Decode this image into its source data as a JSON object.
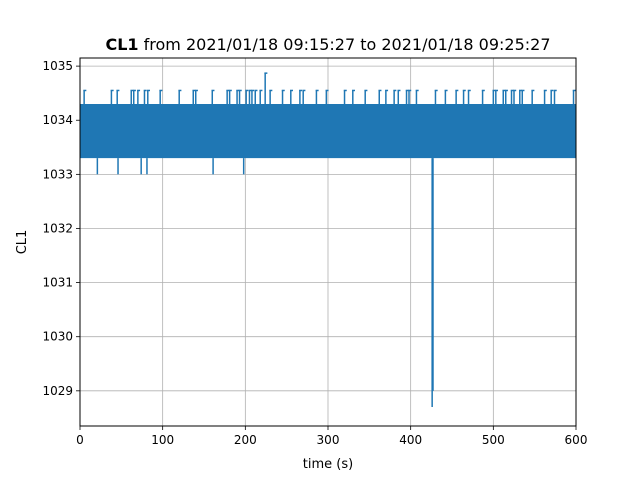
{
  "chart_data": {
    "type": "line",
    "title_bold": "CL1",
    "title_rest": " from 2021/01/18 09:15:27 to 2021/01/18 09:25:27",
    "xlabel": "time (s)",
    "ylabel": "CL1",
    "xlim": [
      0,
      600
    ],
    "ylim": [
      1028.35,
      1035.15
    ],
    "x_ticks": [
      0,
      100,
      200,
      300,
      400,
      500,
      600
    ],
    "x_tick_labels": [
      "0",
      "100",
      "200",
      "300",
      "400",
      "500",
      "600"
    ],
    "y_ticks": [
      1029,
      1030,
      1031,
      1032,
      1033,
      1034,
      1035
    ],
    "y_tick_labels": [
      "1029",
      "1030",
      "1031",
      "1032",
      "1033",
      "1034",
      "1035"
    ],
    "grid": true,
    "series_color": "#1f77b4",
    "baseline_band": [
      1033.3,
      1034.3
    ],
    "spikes_up": [
      [
        5,
        1034.55
      ],
      [
        38,
        1034.55
      ],
      [
        45,
        1034.55
      ],
      [
        62,
        1034.55
      ],
      [
        65,
        1034.55
      ],
      [
        70,
        1034.55
      ],
      [
        78,
        1034.55
      ],
      [
        82,
        1034.55
      ],
      [
        97,
        1034.55
      ],
      [
        120,
        1034.55
      ],
      [
        137,
        1034.55
      ],
      [
        140,
        1034.55
      ],
      [
        160,
        1034.55
      ],
      [
        178,
        1034.55
      ],
      [
        181,
        1034.55
      ],
      [
        190,
        1034.55
      ],
      [
        193,
        1034.55
      ],
      [
        201,
        1034.55
      ],
      [
        205,
        1034.55
      ],
      [
        208,
        1034.55
      ],
      [
        212,
        1034.55
      ],
      [
        218,
        1034.55
      ],
      [
        224,
        1034.87
      ],
      [
        230,
        1034.55
      ],
      [
        245,
        1034.55
      ],
      [
        255,
        1034.55
      ],
      [
        266,
        1034.55
      ],
      [
        270,
        1034.55
      ],
      [
        286,
        1034.55
      ],
      [
        298,
        1034.55
      ],
      [
        320,
        1034.55
      ],
      [
        330,
        1034.55
      ],
      [
        345,
        1034.55
      ],
      [
        362,
        1034.55
      ],
      [
        370,
        1034.55
      ],
      [
        380,
        1034.55
      ],
      [
        385,
        1034.55
      ],
      [
        395,
        1034.55
      ],
      [
        398,
        1034.55
      ],
      [
        407,
        1034.55
      ],
      [
        430,
        1034.55
      ],
      [
        442,
        1034.55
      ],
      [
        455,
        1034.55
      ],
      [
        464,
        1034.55
      ],
      [
        470,
        1034.55
      ],
      [
        487,
        1034.55
      ],
      [
        500,
        1034.55
      ],
      [
        503,
        1034.55
      ],
      [
        512,
        1034.55
      ],
      [
        515,
        1034.55
      ],
      [
        522,
        1034.55
      ],
      [
        525,
        1034.55
      ],
      [
        532,
        1034.55
      ],
      [
        535,
        1034.55
      ],
      [
        547,
        1034.55
      ],
      [
        562,
        1034.55
      ],
      [
        570,
        1034.55
      ],
      [
        574,
        1034.55
      ],
      [
        597,
        1034.55
      ]
    ],
    "spikes_down": [
      [
        21,
        1033.0
      ],
      [
        46,
        1033.0
      ],
      [
        74,
        1033.0
      ],
      [
        81,
        1033.0
      ],
      [
        161,
        1033.0
      ],
      [
        198,
        1033.0
      ],
      [
        426,
        1028.7
      ],
      [
        427,
        1029.0
      ]
    ]
  }
}
